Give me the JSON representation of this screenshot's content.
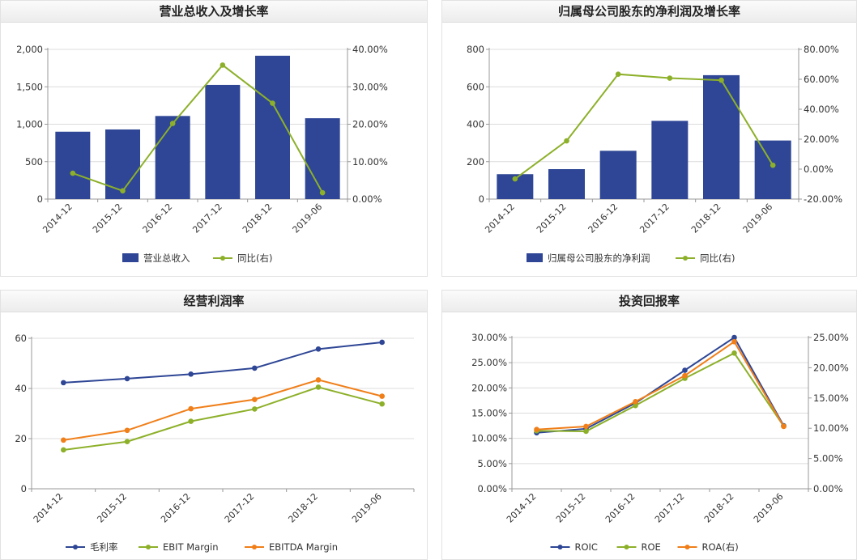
{
  "chart_data": [
    {
      "type": "bar",
      "title": "营业总收入及增长率",
      "categories": [
        "2014-12",
        "2015-12",
        "2016-12",
        "2017-12",
        "2018-12",
        "2019-06"
      ],
      "ylim": [
        0,
        2000
      ],
      "yticks": [
        0,
        500,
        1000,
        1500,
        2000
      ],
      "ytick_labels": [
        "0",
        "500",
        "1,000",
        "1,500",
        "2,000"
      ],
      "y2lim": [
        0,
        40
      ],
      "y2ticks": [
        0,
        10,
        20,
        30,
        40
      ],
      "y2tick_labels": [
        "0.00%",
        "10.00%",
        "20.00%",
        "30.00%",
        "40.00%"
      ],
      "series": [
        {
          "name": "营业总收入",
          "kind": "bar",
          "axis": "left",
          "color": "#2e4695",
          "values": [
            900,
            930,
            1110,
            1525,
            1915,
            1080
          ]
        },
        {
          "name": "同比(右)",
          "kind": "line",
          "axis": "right",
          "color": "#8db02a",
          "values": [
            6.9,
            2.2,
            20.2,
            35.8,
            25.6,
            1.7
          ]
        }
      ],
      "legend": "bottom"
    },
    {
      "type": "bar",
      "title": "归属母公司股东的净利润及增长率",
      "categories": [
        "2014-12",
        "2015-12",
        "2016-12",
        "2017-12",
        "2018-12",
        "2019-06"
      ],
      "ylim": [
        0,
        800
      ],
      "yticks": [
        0,
        200,
        400,
        600,
        800
      ],
      "ytick_labels": [
        "0",
        "200",
        "400",
        "600",
        "800"
      ],
      "y2lim": [
        -20,
        80
      ],
      "y2ticks": [
        -20,
        0,
        20,
        40,
        60,
        80
      ],
      "y2tick_labels": [
        "-20.00%",
        "0.00%",
        "20.00%",
        "40.00%",
        "60.00%",
        "80.00%"
      ],
      "series": [
        {
          "name": "归属母公司股东的净利润",
          "kind": "bar",
          "axis": "left",
          "color": "#2e4695",
          "values": [
            133,
            160,
            258,
            418,
            662,
            313
          ]
        },
        {
          "name": "同比(右)",
          "kind": "line",
          "axis": "right",
          "color": "#8db02a",
          "values": [
            -6.5,
            18.9,
            63.4,
            60.8,
            59.4,
            2.6
          ]
        }
      ],
      "legend": "bottom"
    },
    {
      "type": "line",
      "title": "经营利润率",
      "categories": [
        "2014-12",
        "2015-12",
        "2016-12",
        "2017-12",
        "2018-12",
        "2019-06"
      ],
      "ylim": [
        0,
        60
      ],
      "yticks": [
        0,
        20,
        40,
        60
      ],
      "ytick_labels": [
        "0",
        "20",
        "40",
        "60"
      ],
      "series": [
        {
          "name": "毛利率",
          "kind": "line",
          "axis": "left",
          "color": "#2e4695",
          "values": [
            42.3,
            43.9,
            45.7,
            48.1,
            55.7,
            58.4
          ]
        },
        {
          "name": "EBIT Margin",
          "kind": "line",
          "axis": "left",
          "color": "#8db02a",
          "values": [
            15.5,
            18.8,
            26.9,
            31.8,
            40.5,
            33.8
          ]
        },
        {
          "name": "EBITDA Margin",
          "kind": "line",
          "axis": "left",
          "color": "#f07f1a",
          "values": [
            19.4,
            23.3,
            31.9,
            35.6,
            43.4,
            36.9
          ]
        }
      ],
      "legend": "bottom"
    },
    {
      "type": "line",
      "title": "投资回报率",
      "categories": [
        "2014-12",
        "2015-12",
        "2016-12",
        "2017-12",
        "2018-12",
        "2019-06"
      ],
      "ylim": [
        0,
        30
      ],
      "yticks": [
        0,
        5,
        10,
        15,
        20,
        25,
        30
      ],
      "ytick_labels": [
        "0.00%",
        "5.00%",
        "10.00%",
        "15.00%",
        "20.00%",
        "25.00%",
        "30.00%"
      ],
      "y2lim": [
        0,
        25
      ],
      "y2ticks": [
        0,
        5,
        10,
        15,
        20,
        25
      ],
      "y2tick_labels": [
        "0.00%",
        "5.00%",
        "10.00%",
        "15.00%",
        "20.00%",
        "25.00%"
      ],
      "series": [
        {
          "name": "ROIC",
          "kind": "line",
          "axis": "left",
          "color": "#2e4695",
          "values": [
            11.1,
            11.9,
            17.0,
            23.5,
            30.0,
            12.5
          ]
        },
        {
          "name": "ROE",
          "kind": "line",
          "axis": "left",
          "color": "#8db02a",
          "values": [
            11.5,
            11.4,
            16.5,
            21.9,
            26.9,
            12.4
          ]
        },
        {
          "name": "ROA(右)",
          "kind": "line",
          "axis": "right",
          "color": "#f07f1a",
          "values": [
            9.8,
            10.3,
            14.4,
            18.7,
            24.3,
            10.3
          ]
        }
      ],
      "legend": "bottom"
    }
  ]
}
